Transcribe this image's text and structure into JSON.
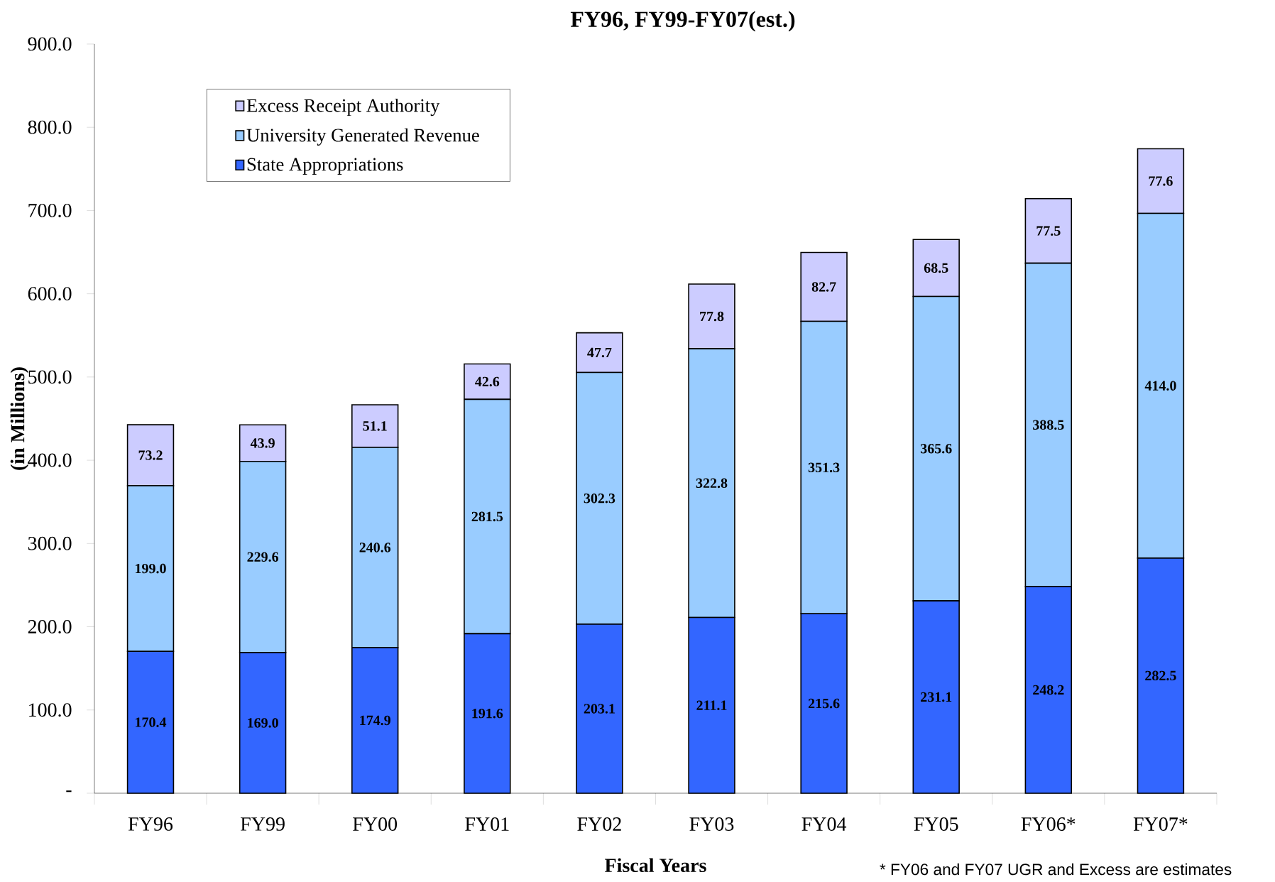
{
  "chart_data": {
    "type": "bar",
    "stacked": true,
    "title": "FY96, FY99-FY07(est.)",
    "xlabel": "Fiscal Years",
    "ylabel": "(in Millions)",
    "categories": [
      "FY96",
      "FY99",
      "FY00",
      "FY01",
      "FY02",
      "FY03",
      "FY04",
      "FY05",
      "FY06*",
      "FY07*"
    ],
    "series": [
      {
        "name": "State Appropriations",
        "color": "#3366ff",
        "values": [
          170.4,
          169.0,
          174.9,
          191.6,
          203.1,
          211.1,
          215.6,
          231.1,
          248.2,
          282.5
        ],
        "value_labels": [
          "170.4",
          "169.0",
          "174.9",
          "191.6",
          "203.1",
          "211.1",
          "215.6",
          "231.1",
          "248.2",
          "282.5"
        ]
      },
      {
        "name": "University Generated Revenue",
        "color": "#99ccff",
        "values": [
          199.0,
          229.6,
          240.6,
          281.5,
          302.3,
          322.8,
          351.3,
          365.6,
          388.5,
          414.0
        ],
        "value_labels": [
          "199.0",
          "229.6",
          "240.6",
          "281.5",
          "302.3",
          "322.8",
          "351.3",
          "365.6",
          "388.5",
          "414.0"
        ]
      },
      {
        "name": "Excess Receipt Authority",
        "color": "#ccccff",
        "values": [
          73.2,
          43.9,
          51.1,
          42.6,
          47.7,
          77.8,
          82.7,
          68.5,
          77.5,
          77.6
        ],
        "value_labels": [
          "73.2",
          "43.9",
          "51.1",
          "42.6",
          "47.7",
          "77.8",
          "82.7",
          "68.5",
          "77.5",
          "77.6"
        ]
      }
    ],
    "ylim": [
      0,
      900
    ],
    "yticks": [
      {
        "value": 0,
        "label": "-"
      },
      {
        "value": 100,
        "label": "100.0"
      },
      {
        "value": 200,
        "label": "200.0"
      },
      {
        "value": 300,
        "label": "300.0"
      },
      {
        "value": 400,
        "label": "400.0"
      },
      {
        "value": 500,
        "label": "500.0"
      },
      {
        "value": 600,
        "label": "600.0"
      },
      {
        "value": 700,
        "label": "700.0"
      },
      {
        "value": 800,
        "label": "800.0"
      },
      {
        "value": 900,
        "label": "900.0"
      }
    ],
    "legend": "top left",
    "grid": false,
    "annotations": [
      "* FY06 and FY07 UGR and Excess are estimates"
    ]
  }
}
